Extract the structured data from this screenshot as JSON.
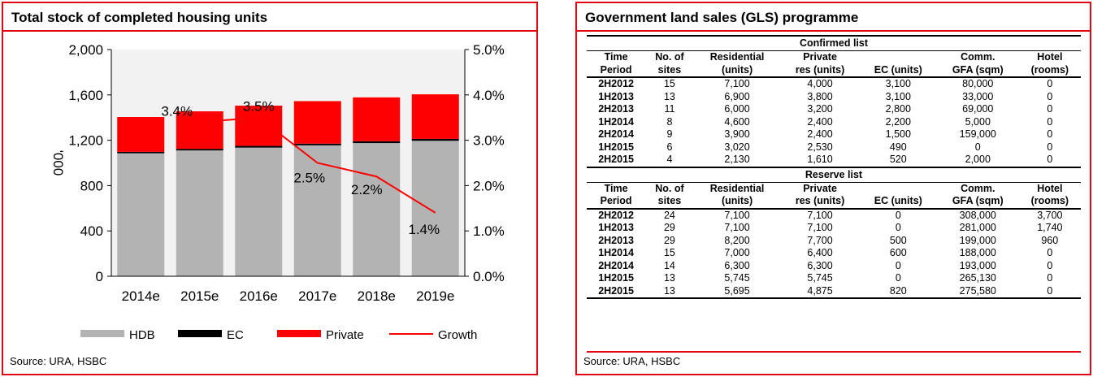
{
  "left_panel": {
    "title": "Total stock of completed housing units",
    "source": "Source: URA, HSBC"
  },
  "chart_data": {
    "type": "bar",
    "stacked": true,
    "title": "Total stock of completed housing units",
    "categories": [
      "2014e",
      "2015e",
      "2016e",
      "2017e",
      "2018e",
      "2019e"
    ],
    "ylabel": "'000",
    "ylim": [
      0,
      2000
    ],
    "yticks": [
      "0",
      "400",
      "800",
      "1,200",
      "1,600",
      "2,000"
    ],
    "y2lim": [
      0,
      5.0
    ],
    "y2ticks": [
      "0.0%",
      "1.0%",
      "2.0%",
      "3.0%",
      "4.0%",
      "5.0%"
    ],
    "series": [
      {
        "name": "HDB",
        "values": [
          1085,
          1110,
          1135,
          1155,
          1175,
          1195
        ],
        "color": "#b3b3b3"
      },
      {
        "name": "EC",
        "values": [
          12,
          14,
          15,
          15,
          16,
          17
        ],
        "color": "#000000"
      },
      {
        "name": "Private",
        "values": [
          308,
          331,
          355,
          375,
          387,
          393
        ],
        "color": "#ff0000"
      }
    ],
    "line_series": {
      "name": "Growth",
      "axis": "right",
      "color": "#ff0000",
      "values": [
        null,
        3.4,
        3.5,
        2.5,
        2.2,
        1.4
      ],
      "labels": [
        "",
        "3.4%",
        "3.5%",
        "2.5%",
        "2.2%",
        "1.4%"
      ]
    },
    "legend": [
      "HDB",
      "EC",
      "Private",
      "Growth"
    ],
    "legend_position": "bottom",
    "grid": false
  },
  "right_panel": {
    "title": "Government land sales (GLS) programme",
    "source": "Source: URA, HSBC",
    "columns": [
      [
        "Time",
        "Period"
      ],
      [
        "No. of",
        "sites"
      ],
      [
        "Residential",
        "(units)"
      ],
      [
        "Private",
        "res (units)"
      ],
      [
        "",
        "EC (units)"
      ],
      [
        "Comm.",
        "GFA (sqm)"
      ],
      [
        "Hotel",
        "(rooms)"
      ]
    ],
    "confirmed_title": "Confirmed list",
    "confirmed_rows": [
      [
        "2H2012",
        "15",
        "7,100",
        "4,000",
        "3,100",
        "80,000",
        "0"
      ],
      [
        "1H2013",
        "13",
        "6,900",
        "3,800",
        "3,100",
        "33,000",
        "0"
      ],
      [
        "2H2013",
        "11",
        "6,000",
        "3,200",
        "2,800",
        "69,000",
        "0"
      ],
      [
        "1H2014",
        "8",
        "4,600",
        "2,400",
        "2,200",
        "5,000",
        "0"
      ],
      [
        "2H2014",
        "9",
        "3,900",
        "2,400",
        "1,500",
        "159,000",
        "0"
      ],
      [
        "1H2015",
        "6",
        "3,020",
        "2,530",
        "490",
        "0",
        "0"
      ],
      [
        "2H2015",
        "4",
        "2,130",
        "1,610",
        "520",
        "2,000",
        "0"
      ]
    ],
    "reserve_title": "Reserve list",
    "reserve_rows": [
      [
        "2H2012",
        "24",
        "7,100",
        "7,100",
        "0",
        "308,000",
        "3,700"
      ],
      [
        "1H2013",
        "29",
        "7,100",
        "7,100",
        "0",
        "281,000",
        "1,740"
      ],
      [
        "2H2013",
        "29",
        "8,200",
        "7,700",
        "500",
        "199,000",
        "960"
      ],
      [
        "1H2014",
        "15",
        "7,000",
        "6,400",
        "600",
        "188,000",
        "0"
      ],
      [
        "2H2014",
        "14",
        "6,300",
        "6,300",
        "0",
        "193,000",
        "0"
      ],
      [
        "1H2015",
        "13",
        "5,745",
        "5,745",
        "0",
        "265,130",
        "0"
      ],
      [
        "2H2015",
        "13",
        "5,695",
        "4,875",
        "820",
        "275,580",
        "0"
      ]
    ]
  }
}
